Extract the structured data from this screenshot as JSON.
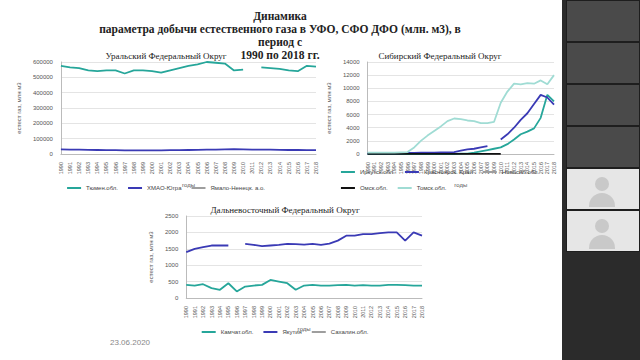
{
  "title": [
    "Динамика",
    "параметра добычи естественного газа в УФО, СФО ДФО (млн. м3), в период с",
    "1990 по 2018 гг."
  ],
  "date": "23.06.2020",
  "chart_data": [
    {
      "type": "line",
      "title": "Уральский Федеральный Округ",
      "x_label": "годы",
      "y_label": "естест газ, млн м3",
      "categories": [
        "1990",
        "1991",
        "1992",
        "1993",
        "1994",
        "1995",
        "1996",
        "1997",
        "1998",
        "1999",
        "2000",
        "2001",
        "2002",
        "2003",
        "2004",
        "2005",
        "2006",
        "2007",
        "2008",
        "2009",
        "2010",
        "2011",
        "2012",
        "2013",
        "2014",
        "2015",
        "2016",
        "2017",
        "2018"
      ],
      "series": [
        {
          "name": "Тюмен.обл.",
          "color": "#26a69a",
          "values": [
            575000,
            565000,
            560000,
            545000,
            540000,
            545000,
            545000,
            525000,
            545000,
            545000,
            540000,
            530000,
            545000,
            560000,
            575000,
            585000,
            600000,
            595000,
            590000,
            545000,
            550000,
            null,
            565000,
            560000,
            555000,
            545000,
            540000,
            575000,
            570000
          ]
        },
        {
          "name": "ХМАО-Югра",
          "color": "#3a3ab5",
          "values": [
            30000,
            29000,
            28000,
            27000,
            26000,
            25000,
            25000,
            24000,
            24000,
            23000,
            23000,
            24000,
            25000,
            25000,
            26000,
            27000,
            28000,
            29000,
            30000,
            31000,
            30000,
            29000,
            28000,
            28000,
            27000,
            26000,
            26000,
            25000,
            25000
          ]
        },
        {
          "name": "Ямало-Ненецк. а.о.",
          "color": "#9e9e9e",
          "values": [
            null,
            null,
            null,
            null,
            null,
            null,
            null,
            null,
            null,
            null,
            null,
            null,
            null,
            null,
            null,
            null,
            null,
            null,
            null,
            null,
            null,
            null,
            null,
            null,
            null,
            null,
            null,
            null,
            null
          ]
        }
      ],
      "ylim": [
        0,
        600000
      ],
      "yticks": [
        0,
        100000,
        200000,
        300000,
        400000,
        500000,
        600000
      ],
      "grid": true,
      "legend": "bottom"
    },
    {
      "type": "line",
      "title": "Сибирский Федеральный Округ",
      "x_label": "годы",
      "y_label": "естест газ, млн м3",
      "categories": [
        "1990",
        "1991",
        "1992",
        "1993",
        "1994",
        "1995",
        "1996",
        "1997",
        "1998",
        "1999",
        "2000",
        "2001",
        "2002",
        "2003",
        "2004",
        "2005",
        "2006",
        "2007",
        "2008",
        "2009",
        "2010",
        "2011",
        "2012",
        "2013",
        "2014",
        "2015",
        "2016",
        "2017",
        "2018"
      ],
      "series": [
        {
          "name": "Иркутск.обл.",
          "color": "#26a69a",
          "values": [
            0,
            0,
            0,
            0,
            0,
            0,
            0,
            0,
            0,
            0,
            0,
            0,
            0,
            0,
            50,
            50,
            200,
            400,
            600,
            800,
            1000,
            1500,
            2200,
            3000,
            3400,
            3900,
            5500,
            9000,
            8000
          ]
        },
        {
          "name": "Красноярск. Край",
          "color": "#3a3ab5",
          "values": [
            100,
            100,
            100,
            100,
            100,
            100,
            150,
            150,
            200,
            200,
            200,
            250,
            250,
            300,
            500,
            700,
            800,
            1000,
            1200,
            null,
            2200,
            3000,
            4000,
            5200,
            6200,
            7600,
            9000,
            8600,
            7500
          ]
        },
        {
          "name": "Новосиб.обл.",
          "color": "#9e9e9e",
          "values": [
            null,
            null,
            null,
            null,
            null,
            null,
            null,
            null,
            null,
            null,
            null,
            null,
            null,
            null,
            null,
            null,
            null,
            null,
            null,
            null,
            null,
            null,
            null,
            null,
            null,
            null,
            null,
            null,
            null
          ]
        },
        {
          "name": "Омск.обл.",
          "color": "#111111",
          "values": [
            20,
            20,
            20,
            20,
            20,
            20,
            20,
            20,
            20,
            20,
            20,
            20,
            20,
            20,
            20,
            20,
            20,
            20,
            20,
            20,
            20,
            null,
            null,
            null,
            null,
            null,
            null,
            null,
            null
          ]
        },
        {
          "name": "Томск.обл.",
          "color": "#a0dcd4",
          "values": [
            200,
            200,
            200,
            200,
            200,
            250,
            300,
            1000,
            2000,
            2800,
            3500,
            4200,
            5000,
            5400,
            5300,
            5100,
            5000,
            4700,
            4700,
            4900,
            7800,
            9500,
            10700,
            10600,
            10800,
            10700,
            11200,
            10600,
            12000
          ]
        }
      ],
      "ylim": [
        0,
        14000
      ],
      "yticks": [
        0,
        2000,
        4000,
        6000,
        8000,
        10000,
        12000,
        14000
      ],
      "grid": true,
      "legend": "bottom"
    },
    {
      "type": "line",
      "title": "Дальневосточный Федеральный Округ",
      "x_label": "годы",
      "y_label": "естест газ, млн м3",
      "categories": [
        "1990",
        "1991",
        "1992",
        "1993",
        "1994",
        "1995",
        "1996",
        "1997",
        "1998",
        "1999",
        "2000",
        "2001",
        "2002",
        "2003",
        "2004",
        "2005",
        "2006",
        "2007",
        "2008",
        "2009",
        "2010",
        "2011",
        "2012",
        "2013",
        "2014",
        "2015",
        "2016",
        "2017",
        "2018"
      ],
      "series": [
        {
          "name": "Камчат.обл.",
          "color": "#26a69a",
          "values": [
            400,
            380,
            420,
            300,
            250,
            450,
            200,
            350,
            380,
            400,
            550,
            500,
            450,
            250,
            380,
            400,
            380,
            380,
            390,
            400,
            380,
            390,
            380,
            380,
            400,
            400,
            390,
            380,
            380
          ]
        },
        {
          "name": "Якутия",
          "color": "#3a3ab5",
          "values": [
            1400,
            1500,
            1550,
            1600,
            1600,
            1600,
            null,
            1650,
            1620,
            1580,
            1600,
            1620,
            1650,
            1640,
            1630,
            1650,
            1620,
            1660,
            1750,
            1900,
            1900,
            1950,
            1950,
            1980,
            2000,
            2000,
            1750,
            2000,
            1900
          ]
        },
        {
          "name": "Сахалин.обл.",
          "color": "#9e9e9e",
          "values": [
            null,
            null,
            null,
            null,
            null,
            null,
            null,
            null,
            null,
            null,
            null,
            null,
            null,
            null,
            null,
            null,
            null,
            null,
            null,
            null,
            null,
            null,
            null,
            null,
            null,
            null,
            null,
            null,
            null
          ]
        }
      ],
      "ylim": [
        0,
        2500
      ],
      "yticks": [
        0,
        500,
        1000,
        1500,
        2000,
        2500
      ],
      "grid": true,
      "legend": "bottom"
    }
  ]
}
